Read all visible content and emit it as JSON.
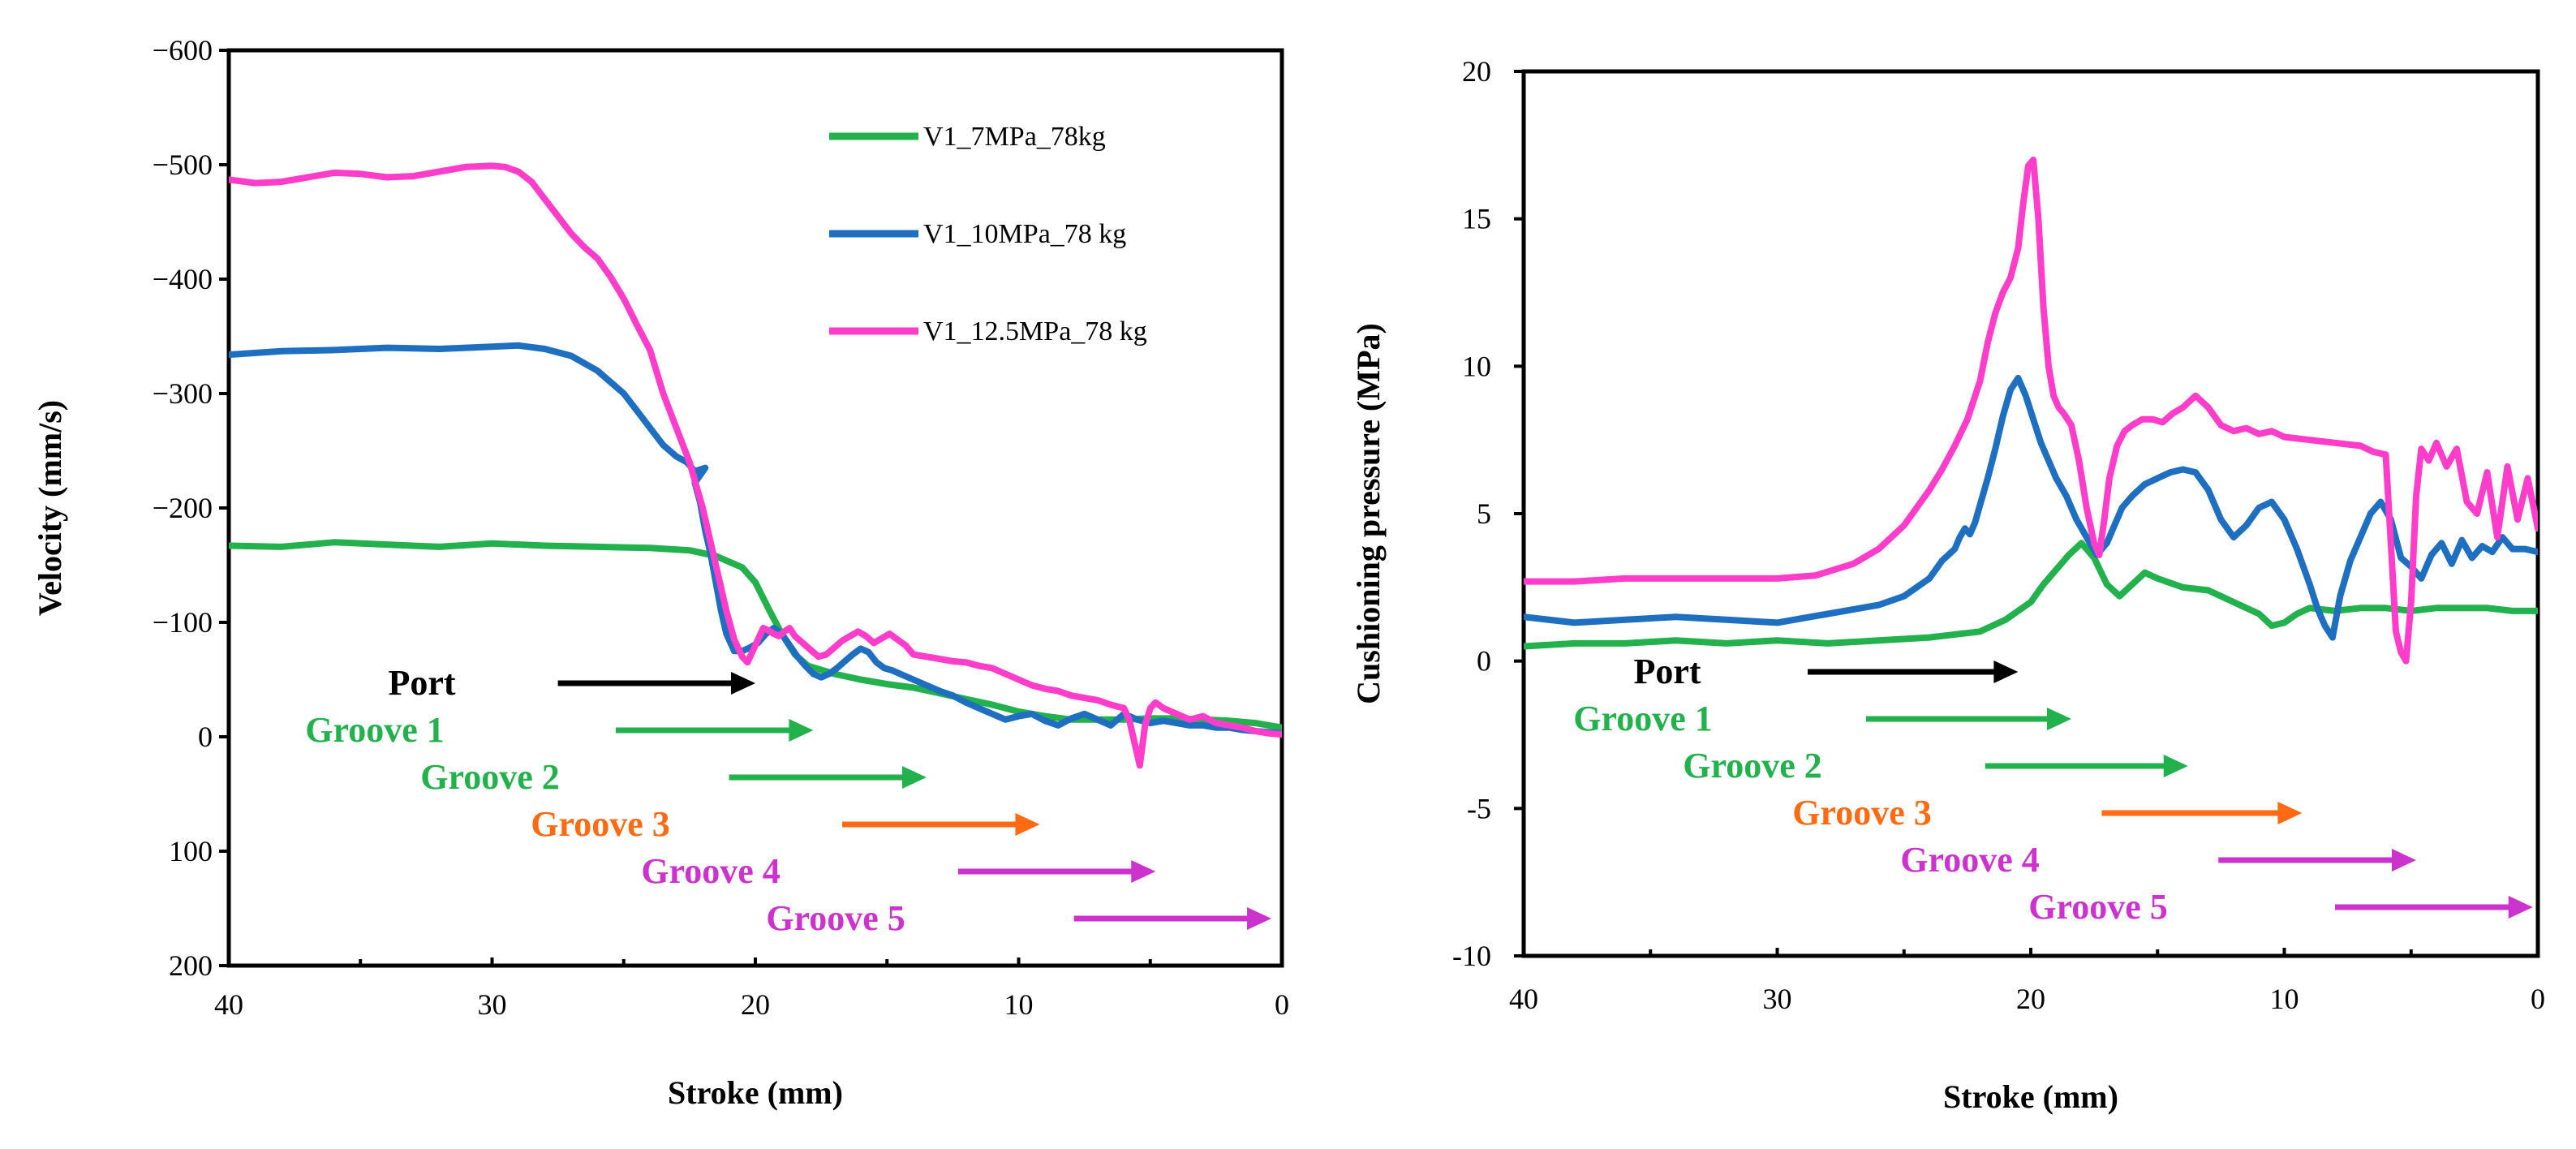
{
  "chart_data": [
    {
      "type": "line",
      "xlabel": "Stroke (mm)",
      "ylabel": "Velocity (mm/s)",
      "xlim": [
        40,
        0
      ],
      "ylim": [
        200,
        -600
      ],
      "xticks": [
        40,
        30,
        20,
        10,
        0
      ],
      "yticks": [
        200,
        100,
        0,
        -100,
        -200,
        -300,
        -400,
        -500,
        -600
      ],
      "xtick_labels": [
        "40",
        "30",
        "20",
        "10",
        "0"
      ],
      "ytick_labels": [
        "200",
        "100",
        "0",
        "−100",
        "−200",
        "−300",
        "−400",
        "−500",
        "−600"
      ],
      "legend": [
        "V1_7MPa_78kg",
        "V1_10MPa_78 kg",
        "V1_12.5MPa_78 kg"
      ],
      "series": [
        {
          "name": "V1_7MPa_78kg",
          "color": "#22b14c",
          "x": [
            40,
            38,
            36,
            34,
            32,
            30,
            28,
            26,
            24,
            22.5,
            21.5,
            20.5,
            20,
            19.5,
            19,
            18.5,
            18,
            17,
            16,
            15,
            14,
            13,
            12,
            11,
            10,
            9,
            8,
            7,
            6,
            5,
            4,
            3,
            2,
            1,
            0.5,
            0
          ],
          "y": [
            -167,
            -166,
            -170,
            -168,
            -166,
            -169,
            -167,
            -166,
            -165,
            -163,
            -158,
            -148,
            -135,
            -112,
            -90,
            -72,
            -62,
            -55,
            -50,
            -46,
            -43,
            -38,
            -33,
            -28,
            -22,
            -18,
            -15,
            -15,
            -15,
            -16,
            -16,
            -15,
            -14,
            -12,
            -10,
            -8
          ]
        },
        {
          "name": "V1_10MPa_78 kg",
          "color": "#1f6fc1",
          "x": [
            40,
            38,
            36,
            34,
            32,
            30,
            29,
            28,
            27,
            26,
            25,
            24.5,
            24,
            23.5,
            23,
            22.6,
            22.3,
            21.9,
            22.3,
            22.1,
            21.9,
            21.7,
            21.5,
            21.3,
            21.1,
            20.8,
            20.5,
            20.2,
            19.9,
            19.6,
            19.3,
            19,
            18.7,
            18.4,
            18.1,
            17.8,
            17.5,
            17.2,
            16.9,
            16.6,
            16.3,
            16,
            15.7,
            15.4,
            15.1,
            14.8,
            14.5,
            14,
            13.5,
            13,
            12.5,
            12,
            11.5,
            11,
            10.5,
            10,
            9.5,
            9,
            8.5,
            8,
            7.5,
            7,
            6.5,
            6,
            5.5,
            5,
            4.5,
            4,
            3.5,
            3,
            2.5,
            2,
            1.5,
            1,
            0.5,
            0
          ],
          "y": [
            -334,
            -337,
            -338,
            -340,
            -339,
            -341,
            -342,
            -339,
            -333,
            -320,
            -300,
            -285,
            -270,
            -255,
            -245,
            -240,
            -232,
            -235,
            -222,
            -205,
            -180,
            -160,
            -135,
            -110,
            -90,
            -75,
            -75,
            -78,
            -82,
            -90,
            -95,
            -90,
            -80,
            -70,
            -62,
            -55,
            -52,
            -55,
            -60,
            -66,
            -72,
            -77,
            -74,
            -65,
            -60,
            -58,
            -55,
            -50,
            -45,
            -40,
            -36,
            -30,
            -25,
            -20,
            -15,
            -18,
            -20,
            -14,
            -10,
            -16,
            -20,
            -15,
            -10,
            -20,
            -15,
            -12,
            -14,
            -12,
            -10,
            -10,
            -8,
            -8,
            -6,
            -5,
            -4,
            -3
          ]
        },
        {
          "name": "V1_12.5MPa_78 kg",
          "color": "#ff3dcb",
          "x": [
            40,
            39,
            38,
            37,
            36,
            35,
            34,
            33,
            32,
            31,
            30,
            29.5,
            29,
            28.5,
            28,
            27.5,
            27,
            26.5,
            26,
            25.5,
            25,
            24.5,
            24,
            23.5,
            23,
            22.5,
            22,
            21.7,
            21.4,
            21.1,
            20.8,
            20.5,
            20.3,
            20.1,
            19.9,
            19.7,
            19.5,
            19.3,
            19.1,
            18.9,
            18.7,
            18.5,
            18.2,
            17.9,
            17.6,
            17.3,
            17,
            16.7,
            16.4,
            16.1,
            15.8,
            15.5,
            15.2,
            14.9,
            14.6,
            14.3,
            14,
            13.5,
            13,
            12.5,
            12,
            11.5,
            11,
            10.5,
            10,
            9.5,
            9,
            8.5,
            8,
            7.5,
            7,
            6.5,
            6,
            5.8,
            5.6,
            5.4,
            5.2,
            5,
            4.8,
            4.5,
            4,
            3.5,
            3,
            2.5,
            2,
            1.5,
            1,
            0.5,
            0
          ],
          "y": [
            -487,
            -484,
            -485,
            -489,
            -493,
            -492,
            -489,
            -490,
            -494,
            -498,
            -499,
            -498,
            -494,
            -485,
            -470,
            -455,
            -440,
            -428,
            -418,
            -402,
            -383,
            -360,
            -338,
            -300,
            -270,
            -240,
            -200,
            -170,
            -140,
            -110,
            -85,
            -70,
            -65,
            -75,
            -85,
            -95,
            -93,
            -90,
            -88,
            -92,
            -95,
            -88,
            -82,
            -76,
            -70,
            -72,
            -78,
            -84,
            -88,
            -92,
            -88,
            -82,
            -86,
            -90,
            -85,
            -80,
            -72,
            -70,
            -68,
            -66,
            -65,
            -62,
            -60,
            -55,
            -50,
            -45,
            -42,
            -40,
            -36,
            -34,
            -32,
            -28,
            -25,
            -15,
            5,
            25,
            -10,
            -25,
            -30,
            -25,
            -20,
            -15,
            -18,
            -12,
            -10,
            -8,
            -5,
            -3,
            -2
          ]
        }
      ],
      "annotations": [
        {
          "text": "Port",
          "color": "#000000",
          "arrow_from": 27.5,
          "arrow_to": 20
        },
        {
          "text": "Groove 1",
          "color": "#22b14c",
          "arrow_from": 25.3,
          "arrow_to": 17.8
        },
        {
          "text": "Groove 2",
          "color": "#22b14c",
          "arrow_from": 21,
          "arrow_to": 13.5
        },
        {
          "text": "Groove 3",
          "color": "#ff6a13",
          "arrow_from": 16.7,
          "arrow_to": 9.2
        },
        {
          "text": "Groove 4",
          "color": "#cc33cc",
          "arrow_from": 12.3,
          "arrow_to": 4.8
        },
        {
          "text": "Groove 5",
          "color": "#cc33cc",
          "arrow_from": 7.9,
          "arrow_to": 0.4
        }
      ]
    },
    {
      "type": "line",
      "xlabel": "Stroke (mm)",
      "ylabel": "Cushioning pressure (MPa)",
      "xlim": [
        40,
        0
      ],
      "ylim": [
        -10,
        20
      ],
      "xticks": [
        40,
        30,
        20,
        10,
        0
      ],
      "yticks": [
        -10,
        -5,
        0,
        5,
        10,
        15,
        20
      ],
      "xtick_labels": [
        "40",
        "30",
        "20",
        "10",
        "0"
      ],
      "ytick_labels": [
        "-10",
        "-5",
        "0",
        "5",
        "10",
        "15",
        "20"
      ],
      "series": [
        {
          "name": "V1_7MPa_78kg",
          "color": "#22b14c",
          "x": [
            40,
            38,
            36,
            34,
            32,
            30,
            28,
            26,
            24,
            22,
            21,
            20,
            19.5,
            19,
            18.5,
            18,
            17.5,
            17,
            16.5,
            16,
            15.5,
            15,
            14,
            13,
            12,
            11,
            10.5,
            10,
            9.5,
            9,
            8,
            7,
            6,
            5,
            4,
            3,
            2,
            1,
            0
          ],
          "y": [
            0.5,
            0.6,
            0.6,
            0.7,
            0.6,
            0.7,
            0.6,
            0.7,
            0.8,
            1.0,
            1.4,
            2.0,
            2.6,
            3.1,
            3.6,
            4.0,
            3.5,
            2.6,
            2.2,
            2.6,
            3.0,
            2.8,
            2.5,
            2.4,
            2.0,
            1.6,
            1.2,
            1.3,
            1.6,
            1.8,
            1.7,
            1.8,
            1.8,
            1.7,
            1.8,
            1.8,
            1.8,
            1.7,
            1.7
          ]
        },
        {
          "name": "V1_10MPa_78 kg",
          "color": "#1f6fc1",
          "x": [
            40,
            38,
            36,
            34,
            32,
            30,
            28,
            26,
            25,
            24,
            23.5,
            23,
            22.8,
            22.6,
            22.4,
            22.2,
            22,
            21.7,
            21.4,
            21.1,
            20.8,
            20.5,
            20.2,
            19.9,
            19.6,
            19.3,
            19,
            18.6,
            18.2,
            17.8,
            17.4,
            17.2,
            17,
            16.7,
            16.4,
            16,
            15.5,
            15,
            14.5,
            14,
            13.5,
            13,
            12.5,
            12,
            11.5,
            11,
            10.5,
            10,
            9.5,
            9,
            8.7,
            8.4,
            8.1,
            7.8,
            7.4,
            7,
            6.6,
            6.2,
            5.8,
            5.4,
            5,
            4.6,
            4.2,
            3.8,
            3.4,
            3,
            2.6,
            2.2,
            1.8,
            1.4,
            1,
            0.5,
            0
          ],
          "y": [
            1.5,
            1.3,
            1.4,
            1.5,
            1.4,
            1.3,
            1.6,
            1.9,
            2.2,
            2.8,
            3.4,
            3.8,
            4.2,
            4.5,
            4.3,
            4.7,
            5.3,
            6.2,
            7.2,
            8.3,
            9.2,
            9.6,
            9.0,
            8.2,
            7.4,
            6.8,
            6.2,
            5.6,
            4.8,
            4.2,
            3.6,
            3.8,
            4.0,
            4.6,
            5.2,
            5.6,
            6.0,
            6.2,
            6.4,
            6.5,
            6.4,
            5.8,
            4.8,
            4.2,
            4.6,
            5.2,
            5.4,
            4.8,
            3.8,
            2.6,
            1.8,
            1.2,
            0.8,
            2.2,
            3.4,
            4.2,
            5.0,
            5.4,
            4.8,
            3.5,
            3.2,
            2.8,
            3.6,
            4.0,
            3.3,
            4.1,
            3.5,
            3.9,
            3.7,
            4.2,
            3.8,
            3.8,
            3.7
          ]
        },
        {
          "name": "V1_12.5MPa_78 kg",
          "color": "#ff3dcb",
          "x": [
            40,
            38,
            36,
            34,
            32,
            30,
            28.5,
            27,
            26,
            25,
            24.5,
            24,
            23.5,
            23,
            22.5,
            22,
            21.7,
            21.4,
            21.1,
            20.8,
            20.5,
            20.3,
            20.1,
            19.9,
            19.7,
            19.5,
            19.3,
            19.1,
            18.9,
            18.7,
            18.4,
            18.1,
            17.8,
            17.5,
            17.3,
            17.1,
            16.9,
            16.6,
            16.3,
            16,
            15.6,
            15.2,
            14.8,
            14.4,
            14,
            13.5,
            13,
            12.5,
            12,
            11.5,
            11,
            10.5,
            10,
            9,
            8,
            7,
            6.5,
            6,
            5.8,
            5.6,
            5.4,
            5.2,
            5,
            4.8,
            4.6,
            4.3,
            4,
            3.6,
            3.2,
            2.8,
            2.4,
            2,
            1.6,
            1.2,
            0.8,
            0.4,
            0
          ],
          "y": [
            2.7,
            2.7,
            2.8,
            2.8,
            2.8,
            2.8,
            2.9,
            3.3,
            3.8,
            4.6,
            5.2,
            5.8,
            6.5,
            7.3,
            8.2,
            9.5,
            10.8,
            11.8,
            12.5,
            13.0,
            14.0,
            15.5,
            16.8,
            17.0,
            15.0,
            12.0,
            10.0,
            9.0,
            8.6,
            8.4,
            8.0,
            6.8,
            5.2,
            4.0,
            3.6,
            4.8,
            6.2,
            7.3,
            7.8,
            8.0,
            8.2,
            8.2,
            8.1,
            8.4,
            8.6,
            9.0,
            8.6,
            8.0,
            7.8,
            7.9,
            7.7,
            7.8,
            7.6,
            7.5,
            7.4,
            7.3,
            7.1,
            7.0,
            4.0,
            1.0,
            0.3,
            0.0,
            2.0,
            5.6,
            7.2,
            6.8,
            7.4,
            6.6,
            7.2,
            5.4,
            5.0,
            6.4,
            4.2,
            6.6,
            4.8,
            6.2,
            4.5
          ]
        }
      ],
      "annotations": [
        {
          "text": "Port",
          "color": "#000000",
          "arrow_from": 28.8,
          "arrow_to": 20.5
        },
        {
          "text": "Groove 1",
          "color": "#22b14c",
          "arrow_from": 26.5,
          "arrow_to": 18.4
        },
        {
          "text": "Groove 2",
          "color": "#22b14c",
          "arrow_from": 21.8,
          "arrow_to": 13.8
        },
        {
          "text": "Groove 3",
          "color": "#ff6a13",
          "arrow_from": 17.2,
          "arrow_to": 9.3
        },
        {
          "text": "Groove 4",
          "color": "#cc33cc",
          "arrow_from": 12.6,
          "arrow_to": 4.8
        },
        {
          "text": "Groove 5",
          "color": "#cc33cc",
          "arrow_from": 8.0,
          "arrow_to": 0.2
        }
      ]
    }
  ]
}
